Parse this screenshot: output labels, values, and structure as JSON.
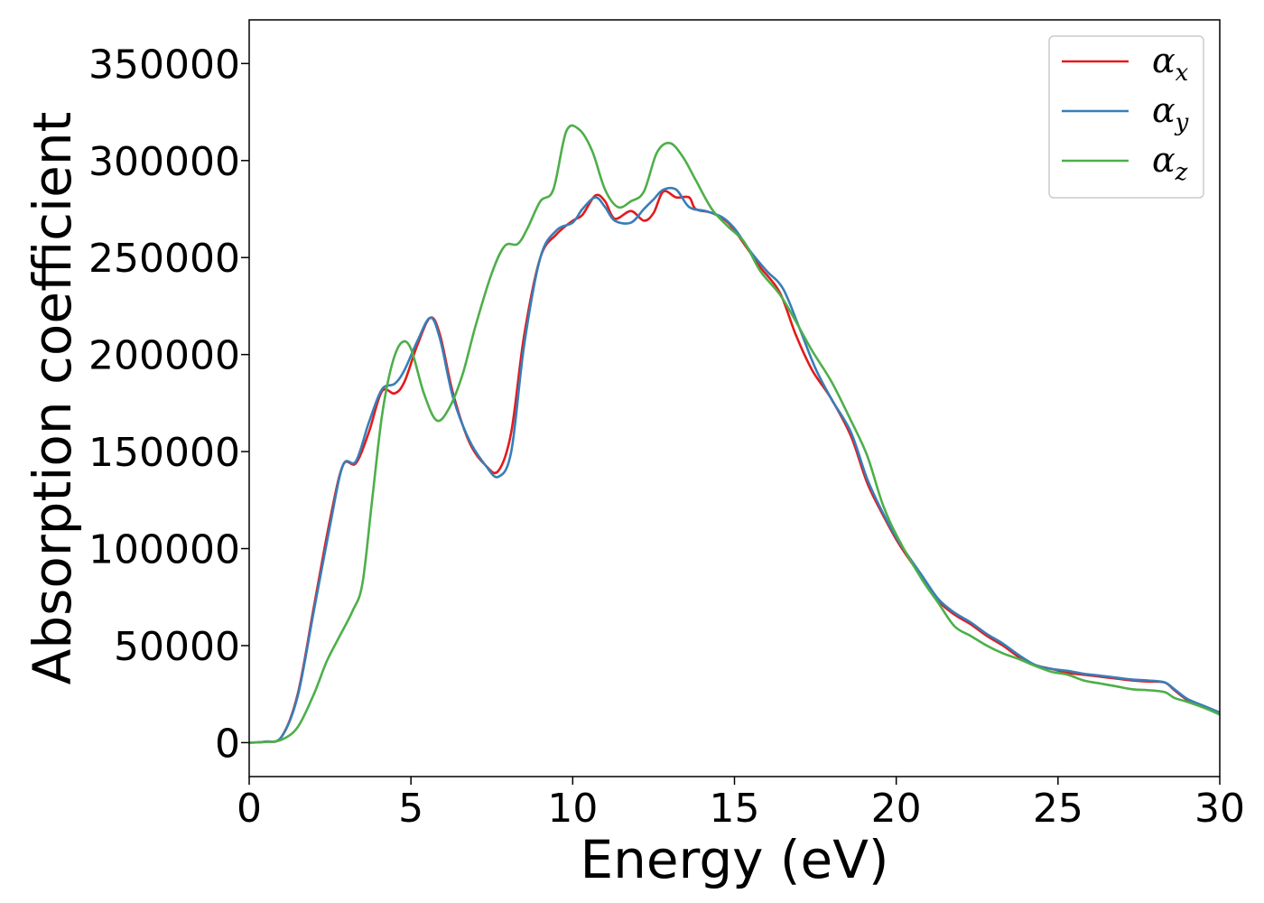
{
  "chart_data": {
    "type": "line",
    "xlabel": "Energy (eV)",
    "ylabel": "Absorption coefficient",
    "xlim": [
      0,
      30
    ],
    "ylim": [
      -17500,
      372500
    ],
    "xticks": [
      0,
      5,
      10,
      15,
      20,
      25,
      30
    ],
    "yticks": [
      0,
      50000,
      100000,
      150000,
      200000,
      250000,
      300000,
      350000
    ],
    "grid": false,
    "legend_position": "top-right",
    "series": [
      {
        "name": "α_x",
        "symbol": "α",
        "sub": "x",
        "color": "#e41a1c",
        "points": [
          [
            0,
            0
          ],
          [
            0.5,
            500
          ],
          [
            1.0,
            3000
          ],
          [
            1.5,
            25000
          ],
          [
            2.0,
            70000
          ],
          [
            2.5,
            115000
          ],
          [
            2.9,
            143000
          ],
          [
            3.3,
            144000
          ],
          [
            3.7,
            160000
          ],
          [
            4.1,
            181000
          ],
          [
            4.5,
            180000
          ],
          [
            4.8,
            186000
          ],
          [
            5.2,
            205000
          ],
          [
            5.6,
            219000
          ],
          [
            5.9,
            210000
          ],
          [
            6.3,
            180000
          ],
          [
            6.8,
            155000
          ],
          [
            7.3,
            143000
          ],
          [
            7.7,
            140000
          ],
          [
            8.1,
            160000
          ],
          [
            8.5,
            210000
          ],
          [
            9.0,
            250000
          ],
          [
            9.5,
            262000
          ],
          [
            10.0,
            269000
          ],
          [
            10.3,
            272000
          ],
          [
            10.7,
            282000
          ],
          [
            11.0,
            279000
          ],
          [
            11.3,
            270000
          ],
          [
            11.8,
            274000
          ],
          [
            12.2,
            269000
          ],
          [
            12.5,
            273000
          ],
          [
            12.8,
            284000
          ],
          [
            13.2,
            281000
          ],
          [
            13.6,
            281000
          ],
          [
            13.8,
            275000
          ],
          [
            14.3,
            273000
          ],
          [
            14.8,
            268000
          ],
          [
            15.3,
            257000
          ],
          [
            15.8,
            245000
          ],
          [
            16.4,
            232000
          ],
          [
            16.9,
            210000
          ],
          [
            17.4,
            192000
          ],
          [
            18.0,
            177000
          ],
          [
            18.6,
            158000
          ],
          [
            19.1,
            134000
          ],
          [
            19.6,
            117000
          ],
          [
            20.1,
            102000
          ],
          [
            20.8,
            85000
          ],
          [
            21.3,
            73000
          ],
          [
            21.8,
            66000
          ],
          [
            22.3,
            61000
          ],
          [
            22.8,
            55000
          ],
          [
            23.3,
            50000
          ],
          [
            23.8,
            44000
          ],
          [
            24.3,
            40000
          ],
          [
            24.8,
            38000
          ],
          [
            25.3,
            36000
          ],
          [
            25.8,
            35000
          ],
          [
            26.3,
            34000
          ],
          [
            26.8,
            33000
          ],
          [
            27.3,
            32000
          ],
          [
            27.8,
            31500
          ],
          [
            28.3,
            31000
          ],
          [
            28.6,
            27000
          ],
          [
            29.0,
            22000
          ],
          [
            29.5,
            18500
          ],
          [
            30,
            15000
          ]
        ]
      },
      {
        "name": "α_y",
        "symbol": "α",
        "sub": "y",
        "color": "#377eb8",
        "points": [
          [
            0,
            0
          ],
          [
            0.5,
            500
          ],
          [
            1.0,
            3000
          ],
          [
            1.5,
            24000
          ],
          [
            2.0,
            68000
          ],
          [
            2.5,
            112000
          ],
          [
            2.9,
            143000
          ],
          [
            3.3,
            145000
          ],
          [
            3.7,
            165000
          ],
          [
            4.1,
            182000
          ],
          [
            4.5,
            185000
          ],
          [
            4.8,
            192000
          ],
          [
            5.2,
            207000
          ],
          [
            5.6,
            219000
          ],
          [
            5.9,
            208000
          ],
          [
            6.3,
            178000
          ],
          [
            6.8,
            156000
          ],
          [
            7.3,
            143000
          ],
          [
            7.7,
            137000
          ],
          [
            8.1,
            150000
          ],
          [
            8.5,
            205000
          ],
          [
            9.0,
            250000
          ],
          [
            9.5,
            264000
          ],
          [
            10.0,
            268000
          ],
          [
            10.3,
            275000
          ],
          [
            10.7,
            281000
          ],
          [
            11.0,
            276000
          ],
          [
            11.3,
            269000
          ],
          [
            11.8,
            268000
          ],
          [
            12.2,
            275000
          ],
          [
            12.5,
            280000
          ],
          [
            12.8,
            285000
          ],
          [
            13.2,
            285000
          ],
          [
            13.6,
            276000
          ],
          [
            14.1,
            274000
          ],
          [
            14.6,
            271000
          ],
          [
            15.0,
            265000
          ],
          [
            15.5,
            253000
          ],
          [
            16.0,
            243000
          ],
          [
            16.5,
            234000
          ],
          [
            17.0,
            214000
          ],
          [
            17.5,
            193000
          ],
          [
            18.0,
            177000
          ],
          [
            18.6,
            160000
          ],
          [
            19.1,
            136000
          ],
          [
            19.6,
            118000
          ],
          [
            20.1,
            103000
          ],
          [
            20.8,
            86000
          ],
          [
            21.3,
            74000
          ],
          [
            21.8,
            67000
          ],
          [
            22.3,
            62000
          ],
          [
            22.8,
            56000
          ],
          [
            23.3,
            51000
          ],
          [
            23.8,
            45000
          ],
          [
            24.3,
            40000
          ],
          [
            24.8,
            38000
          ],
          [
            25.3,
            37000
          ],
          [
            25.8,
            35500
          ],
          [
            26.3,
            34500
          ],
          [
            26.8,
            33500
          ],
          [
            27.3,
            32500
          ],
          [
            27.8,
            32000
          ],
          [
            28.3,
            31000
          ],
          [
            28.6,
            27500
          ],
          [
            29.0,
            22500
          ],
          [
            29.5,
            19000
          ],
          [
            30,
            15500
          ]
        ]
      },
      {
        "name": "α_z",
        "symbol": "α",
        "sub": "z",
        "color": "#4daf4a",
        "points": [
          [
            0,
            0
          ],
          [
            0.5,
            300
          ],
          [
            1.0,
            1500
          ],
          [
            1.5,
            8000
          ],
          [
            2.0,
            25000
          ],
          [
            2.4,
            42000
          ],
          [
            2.8,
            55000
          ],
          [
            3.2,
            68000
          ],
          [
            3.5,
            82000
          ],
          [
            3.8,
            125000
          ],
          [
            4.1,
            168000
          ],
          [
            4.4,
            194000
          ],
          [
            4.7,
            206000
          ],
          [
            5.0,
            203000
          ],
          [
            5.4,
            180000
          ],
          [
            5.8,
            166000
          ],
          [
            6.2,
            173000
          ],
          [
            6.6,
            190000
          ],
          [
            7.0,
            215000
          ],
          [
            7.5,
            242000
          ],
          [
            7.9,
            256000
          ],
          [
            8.3,
            257000
          ],
          [
            8.6,
            265000
          ],
          [
            9.0,
            279000
          ],
          [
            9.4,
            285000
          ],
          [
            9.8,
            315000
          ],
          [
            10.2,
            316000
          ],
          [
            10.6,
            305000
          ],
          [
            11.0,
            285000
          ],
          [
            11.4,
            276000
          ],
          [
            11.8,
            279000
          ],
          [
            12.2,
            284000
          ],
          [
            12.6,
            304000
          ],
          [
            13.0,
            309000
          ],
          [
            13.4,
            302000
          ],
          [
            13.8,
            290000
          ],
          [
            14.3,
            275000
          ],
          [
            14.8,
            266000
          ],
          [
            15.3,
            258000
          ],
          [
            15.8,
            243000
          ],
          [
            16.4,
            231000
          ],
          [
            16.9,
            217000
          ],
          [
            17.4,
            202000
          ],
          [
            18.0,
            186000
          ],
          [
            18.6,
            166000
          ],
          [
            19.1,
            148000
          ],
          [
            19.6,
            122000
          ],
          [
            20.1,
            104000
          ],
          [
            20.8,
            84000
          ],
          [
            21.3,
            72000
          ],
          [
            21.8,
            60000
          ],
          [
            22.3,
            55000
          ],
          [
            22.8,
            50000
          ],
          [
            23.3,
            46000
          ],
          [
            23.8,
            43000
          ],
          [
            24.3,
            39500
          ],
          [
            24.8,
            36500
          ],
          [
            25.3,
            35000
          ],
          [
            25.8,
            32000
          ],
          [
            26.3,
            30500
          ],
          [
            26.8,
            29000
          ],
          [
            27.3,
            27500
          ],
          [
            27.8,
            27000
          ],
          [
            28.3,
            26000
          ],
          [
            28.6,
            23000
          ],
          [
            29.0,
            21000
          ],
          [
            29.5,
            18000
          ],
          [
            30,
            14500
          ]
        ]
      }
    ]
  }
}
